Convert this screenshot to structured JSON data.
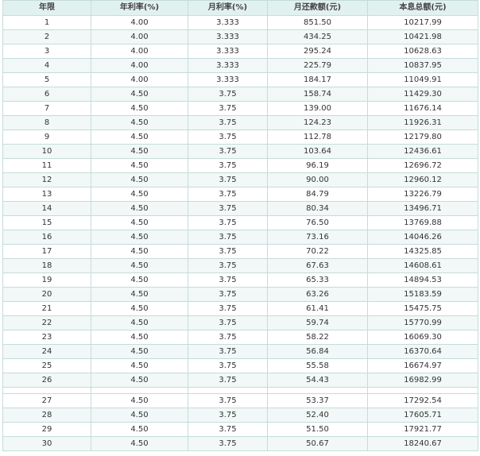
{
  "table": {
    "headers": [
      "年限",
      "年利率(%)",
      "月利率(%)",
      "月还款额(元)",
      "本息总额(元)"
    ],
    "rows": [
      [
        "1",
        "4.00",
        "3.333",
        "851.50",
        "10217.99"
      ],
      [
        "2",
        "4.00",
        "3.333",
        "434.25",
        "10421.98"
      ],
      [
        "3",
        "4.00",
        "3.333",
        "295.24",
        "10628.63"
      ],
      [
        "4",
        "4.00",
        "3.333",
        "225.79",
        "10837.95"
      ],
      [
        "5",
        "4.00",
        "3.333",
        "184.17",
        "11049.91"
      ],
      [
        "6",
        "4.50",
        "3.75",
        "158.74",
        "11429.30"
      ],
      [
        "7",
        "4.50",
        "3.75",
        "139.00",
        "11676.14"
      ],
      [
        "8",
        "4.50",
        "3.75",
        "124.23",
        "11926.31"
      ],
      [
        "9",
        "4.50",
        "3.75",
        "112.78",
        "12179.80"
      ],
      [
        "10",
        "4.50",
        "3.75",
        "103.64",
        "12436.61"
      ],
      [
        "11",
        "4.50",
        "3.75",
        "96.19",
        "12696.72"
      ],
      [
        "12",
        "4.50",
        "3.75",
        "90.00",
        "12960.12"
      ],
      [
        "13",
        "4.50",
        "3.75",
        "84.79",
        "13226.79"
      ],
      [
        "14",
        "4.50",
        "3.75",
        "80.34",
        "13496.71"
      ],
      [
        "15",
        "4.50",
        "3.75",
        "76.50",
        "13769.88"
      ],
      [
        "16",
        "4.50",
        "3.75",
        "73.16",
        "14046.26"
      ],
      [
        "17",
        "4.50",
        "3.75",
        "70.22",
        "14325.85"
      ],
      [
        "18",
        "4.50",
        "3.75",
        "67.63",
        "14608.61"
      ],
      [
        "19",
        "4.50",
        "3.75",
        "65.33",
        "14894.53"
      ],
      [
        "20",
        "4.50",
        "3.75",
        "63.26",
        "15183.59"
      ],
      [
        "21",
        "4.50",
        "3.75",
        "61.41",
        "15475.75"
      ],
      [
        "22",
        "4.50",
        "3.75",
        "59.74",
        "15770.99"
      ],
      [
        "23",
        "4.50",
        "3.75",
        "58.22",
        "16069.30"
      ],
      [
        "24",
        "4.50",
        "3.75",
        "56.84",
        "16370.64"
      ],
      [
        "25",
        "4.50",
        "3.75",
        "55.58",
        "16674.97"
      ],
      [
        "26",
        "4.50",
        "3.75",
        "54.43",
        "16982.99"
      ],
      [
        "27",
        "4.50",
        "3.75",
        "53.37",
        "17292.54"
      ],
      [
        "28",
        "4.50",
        "3.75",
        "52.40",
        "17605.71"
      ],
      [
        "29",
        "4.50",
        "3.75",
        "51.50",
        "17921.77"
      ],
      [
        "30",
        "4.50",
        "3.75",
        "50.67",
        "18240.67"
      ]
    ]
  },
  "colors": {
    "header_bg": "#e1f1ef",
    "row_stripe": "#f1f8f7",
    "border": "#c5dcd9"
  }
}
